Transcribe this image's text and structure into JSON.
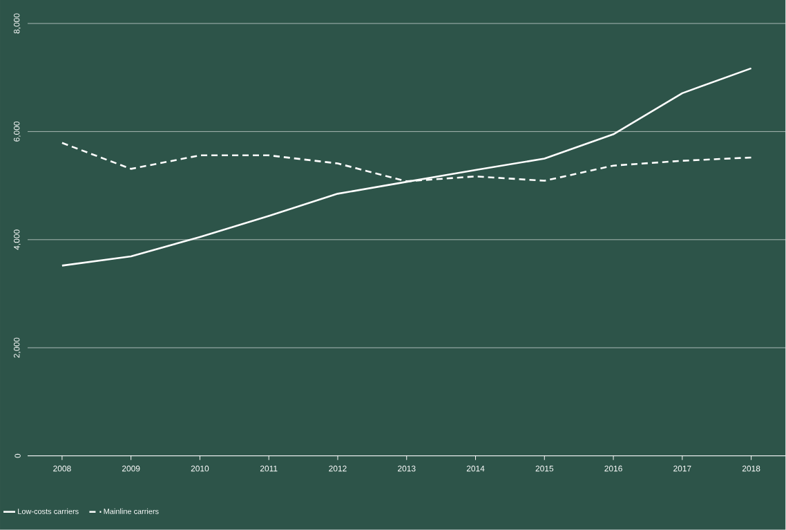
{
  "chart_data": {
    "type": "line",
    "categories": [
      "2008",
      "2009",
      "2010",
      "2011",
      "2012",
      "2013",
      "2014",
      "2015",
      "2016",
      "2017",
      "2018"
    ],
    "series": [
      {
        "name": "Low-costs carriers",
        "color": "#ffffff",
        "line_style": "solid",
        "values": [
          3520,
          3690,
          4050,
          4440,
          4850,
          5070,
          5290,
          5500,
          5950,
          6710,
          7170
        ]
      },
      {
        "name": "Mainline carriers",
        "color": "#ffffff",
        "line_style": "dashed",
        "values": [
          5790,
          5310,
          5560,
          5560,
          5410,
          5080,
          5170,
          5090,
          5370,
          5460,
          5520
        ]
      }
    ],
    "ylim": [
      0,
      8000
    ],
    "yticks": [
      0,
      {
        "value": 2000,
        "label": "2,000"
      },
      {
        "value": 4000,
        "label": "4,000"
      },
      {
        "value": 6000,
        "label": "6,000"
      },
      {
        "value": 8000,
        "label": "8,000"
      }
    ],
    "grid": "y",
    "legend": "bottom",
    "marker": "none"
  }
}
